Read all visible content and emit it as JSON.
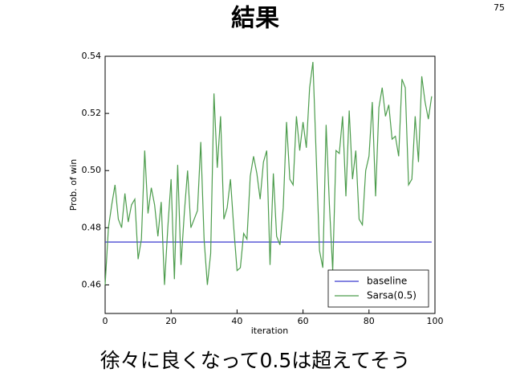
{
  "slide": {
    "title": "結果",
    "page_number": "75",
    "caption": "徐々に良くなって0.5は超えてそう"
  },
  "chart_data": {
    "type": "line",
    "x_label": "iteration",
    "y_label": "Prob. of win",
    "x": [
      0,
      1,
      2,
      3,
      4,
      5,
      6,
      7,
      8,
      9,
      10,
      11,
      12,
      13,
      14,
      15,
      16,
      17,
      18,
      19,
      20,
      21,
      22,
      23,
      24,
      25,
      26,
      27,
      28,
      29,
      30,
      31,
      32,
      33,
      34,
      35,
      36,
      37,
      38,
      39,
      40,
      41,
      42,
      43,
      44,
      45,
      46,
      47,
      48,
      49,
      50,
      51,
      52,
      53,
      54,
      55,
      56,
      57,
      58,
      59,
      60,
      61,
      62,
      63,
      64,
      65,
      66,
      67,
      68,
      69,
      70,
      71,
      72,
      73,
      74,
      75,
      76,
      77,
      78,
      79,
      80,
      81,
      82,
      83,
      84,
      85,
      86,
      87,
      88,
      89,
      90,
      91,
      92,
      93,
      94,
      95,
      96,
      97,
      98,
      99
    ],
    "xlim": [
      0,
      100
    ],
    "xticks": [
      0,
      20,
      40,
      60,
      80,
      100
    ],
    "ylim": [
      0.45,
      0.54
    ],
    "yticks": [
      0.46,
      0.48,
      {
        "value": 0.5,
        "label": "0.50"
      },
      0.52,
      0.54
    ],
    "grid": false,
    "legend": "lower right",
    "series": [
      {
        "name": "baseline",
        "color": "#3a3acf",
        "values": [
          0.475,
          0.475,
          0.475,
          0.475,
          0.475,
          0.475,
          0.475,
          0.475,
          0.475,
          0.475,
          0.475,
          0.475,
          0.475,
          0.475,
          0.475,
          0.475,
          0.475,
          0.475,
          0.475,
          0.475,
          0.475,
          0.475,
          0.475,
          0.475,
          0.475,
          0.475,
          0.475,
          0.475,
          0.475,
          0.475,
          0.475,
          0.475,
          0.475,
          0.475,
          0.475,
          0.475,
          0.475,
          0.475,
          0.475,
          0.475,
          0.475,
          0.475,
          0.475,
          0.475,
          0.475,
          0.475,
          0.475,
          0.475,
          0.475,
          0.475,
          0.475,
          0.475,
          0.475,
          0.475,
          0.475,
          0.475,
          0.475,
          0.475,
          0.475,
          0.475,
          0.475,
          0.475,
          0.475,
          0.475,
          0.475,
          0.475,
          0.475,
          0.475,
          0.475,
          0.475,
          0.475,
          0.475,
          0.475,
          0.475,
          0.475,
          0.475,
          0.475,
          0.475,
          0.475,
          0.475,
          0.475,
          0.475,
          0.475,
          0.475,
          0.475,
          0.475,
          0.475,
          0.475,
          0.475,
          0.475,
          0.475,
          0.475,
          0.475,
          0.475,
          0.475,
          0.475,
          0.475,
          0.475,
          0.475,
          0.475
        ]
      },
      {
        "name": "Sarsa(0.5)",
        "color": "#4c9c4c",
        "values": [
          0.46,
          0.48,
          0.488,
          0.495,
          0.483,
          0.48,
          0.492,
          0.482,
          0.488,
          0.49,
          0.469,
          0.476,
          0.507,
          0.485,
          0.494,
          0.488,
          0.477,
          0.489,
          0.46,
          0.48,
          0.497,
          0.462,
          0.502,
          0.467,
          0.485,
          0.5,
          0.48,
          0.483,
          0.486,
          0.51,
          0.476,
          0.46,
          0.471,
          0.527,
          0.501,
          0.519,
          0.483,
          0.487,
          0.497,
          0.48,
          0.465,
          0.466,
          0.478,
          0.476,
          0.498,
          0.505,
          0.499,
          0.49,
          0.503,
          0.507,
          0.467,
          0.499,
          0.477,
          0.474,
          0.487,
          0.517,
          0.497,
          0.495,
          0.519,
          0.507,
          0.517,
          0.508,
          0.529,
          0.538,
          0.505,
          0.472,
          0.466,
          0.516,
          0.488,
          0.465,
          0.507,
          0.506,
          0.519,
          0.491,
          0.521,
          0.497,
          0.507,
          0.483,
          0.481,
          0.5,
          0.505,
          0.524,
          0.491,
          0.522,
          0.529,
          0.519,
          0.523,
          0.511,
          0.512,
          0.505,
          0.532,
          0.529,
          0.495,
          0.497,
          0.519,
          0.503,
          0.533,
          0.524,
          0.518,
          0.526
        ]
      }
    ]
  }
}
